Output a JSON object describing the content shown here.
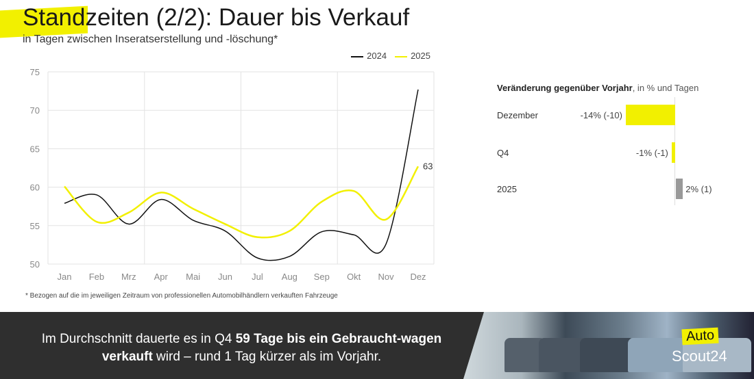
{
  "header": {
    "title_highlight": "Standz",
    "title_rest": "eiten (2/2): Dauer bis Verkauf",
    "subtitle": "in Tagen zwischen Inseratserstellung und -löschung*"
  },
  "chart_data": [
    {
      "type": "line",
      "categories": [
        "Jan",
        "Feb",
        "Mrz",
        "Apr",
        "Mai",
        "Jun",
        "Jul",
        "Aug",
        "Sep",
        "Okt",
        "Nov",
        "Dez"
      ],
      "series": [
        {
          "name": "2024",
          "color": "#111111",
          "values": [
            57.9,
            59.0,
            55.2,
            58.4,
            55.7,
            54.3,
            50.8,
            51.0,
            54.2,
            53.8,
            52.6,
            72.7
          ]
        },
        {
          "name": "2025",
          "color": "#f2f000",
          "values": [
            60.1,
            55.5,
            56.7,
            59.3,
            57.2,
            55.2,
            53.5,
            54.3,
            58.1,
            59.5,
            55.8,
            62.7
          ]
        }
      ],
      "end_label": "63",
      "yticks": [
        "50",
        "55",
        "60",
        "65",
        "70",
        "75"
      ],
      "ylim": [
        50,
        75
      ],
      "grid": true,
      "legend": "top-right"
    },
    {
      "type": "bar",
      "title_bold": "Veränderung gegenüber Vorjahr",
      "title_rest": ", in % und Tagen",
      "categories": [
        "Dezember",
        "Q4",
        "2025"
      ],
      "values": [
        -14,
        -1,
        2
      ],
      "labels": [
        "-14% (-10)",
        "-1% (-1)",
        "2% (1)"
      ],
      "colors": [
        "#f2f000",
        "#f2f000",
        "#999999"
      ]
    }
  ],
  "footnote": "* Bezogen auf die im jeweiligen Zeitraum von professionellen Automobilhändlern verkauften Fahrzeuge",
  "banner": {
    "t1": "Im Durchschnitt dauerte es in Q4 ",
    "b1": "59 Tage bis ein Gebraucht-wagen verkauft",
    "t2": " wird – rund 1 Tag kürzer als im Vorjahr."
  },
  "logo": {
    "auto": "Auto",
    "scout": "Scout24"
  }
}
